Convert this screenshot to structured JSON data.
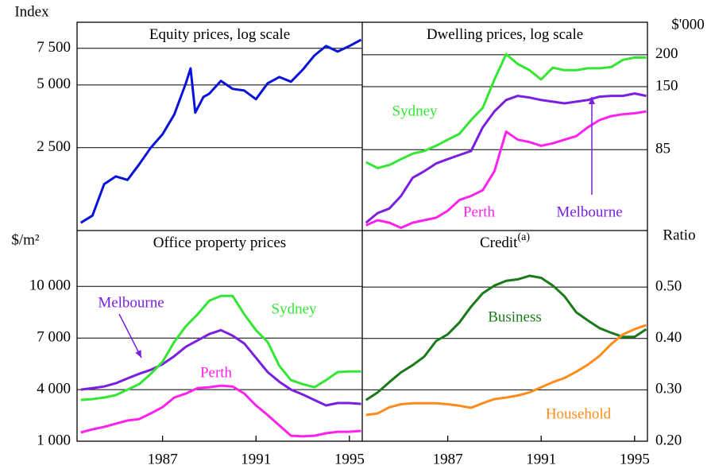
{
  "chart_data": [
    {
      "type": "line",
      "title": "Equity prices, log scale",
      "y_label": "Index",
      "y_side": "left",
      "log_scale": true,
      "grid": true,
      "xlim": [
        1983.34,
        1995.55
      ],
      "ylim": [
        1000,
        10000
      ],
      "yticks": [
        {
          "value": 2500,
          "label": "2 500"
        },
        {
          "value": 5000,
          "label": "5 000"
        },
        {
          "value": 7500,
          "label": "7 500"
        }
      ],
      "x": [
        1983.5,
        1984,
        1984.5,
        1985,
        1985.5,
        1986,
        1986.5,
        1987,
        1987.5,
        1988,
        1988.2,
        1988.4,
        1988.75,
        1989,
        1989.5,
        1990,
        1990.5,
        1991,
        1991.5,
        1992,
        1992.5,
        1993,
        1993.5,
        1994,
        1994.5,
        1995,
        1995.5
      ],
      "series": [
        {
          "color": "#0a14d8",
          "values": [
            1090,
            1180,
            1670,
            1820,
            1750,
            2080,
            2500,
            2900,
            3600,
            5100,
            6000,
            3680,
            4380,
            4540,
            5230,
            4790,
            4700,
            4270,
            5090,
            5460,
            5180,
            5910,
            6920,
            7690,
            7230,
            7690,
            8240
          ]
        }
      ]
    },
    {
      "type": "line",
      "title": "Dwelling prices, log scale",
      "y_label": "$'000",
      "y_side": "right",
      "log_scale": true,
      "grid": true,
      "xlim": [
        1983.34,
        1995.55
      ],
      "ylim": [
        41,
        268
      ],
      "yticks": [
        85,
        150,
        200
      ],
      "x": [
        1983.5,
        1984,
        1984.5,
        1985,
        1985.5,
        1986,
        1986.5,
        1987,
        1987.5,
        1988,
        1988.5,
        1989,
        1989.5,
        1990,
        1990.5,
        1991,
        1991.5,
        1992,
        1992.5,
        1993,
        1993.5,
        1994,
        1994.5,
        1995,
        1995.5
      ],
      "series": [
        {
          "name": "Sydney",
          "color": "#33e633",
          "values": [
            76,
            72,
            74,
            78,
            82,
            84,
            88,
            93,
            98,
            111,
            124,
            160,
            201,
            184,
            174,
            160,
            178,
            174,
            174,
            177,
            177,
            179,
            191,
            195,
            195
          ]
        },
        {
          "name": "Perth",
          "color": "#ff22ee",
          "values": [
            43,
            45,
            44,
            42,
            44,
            45,
            46,
            49,
            54,
            56,
            59,
            70,
            100,
            93,
            91,
            88,
            90,
            93,
            96,
            104,
            111,
            115,
            117,
            118,
            120
          ]
        },
        {
          "name": "Melbourne",
          "color": "#7a1fe0",
          "values": [
            44,
            48,
            50,
            56,
            66,
            70,
            75,
            78,
            81,
            84,
            104,
            120,
            133,
            138,
            136,
            133,
            131,
            129,
            131,
            133,
            137,
            138,
            138,
            141,
            138
          ]
        }
      ]
    },
    {
      "type": "line",
      "title": "Office property prices",
      "y_label": "$/m²",
      "y_side": "left",
      "log_scale": false,
      "grid": true,
      "xlim": [
        1983.34,
        1995.55
      ],
      "ylim": [
        1000,
        13250
      ],
      "yticks": [
        {
          "value": 1000,
          "label": "1 000"
        },
        {
          "value": 4000,
          "label": "4 000"
        },
        {
          "value": 7000,
          "label": "7 000"
        },
        {
          "value": 10000,
          "label": "10 000"
        }
      ],
      "xticks": [
        1987,
        1991,
        1995
      ],
      "x": [
        1983.5,
        1984,
        1984.5,
        1985,
        1985.5,
        1986,
        1986.5,
        1987,
        1987.5,
        1988,
        1988.5,
        1989,
        1989.5,
        1990,
        1990.5,
        1991,
        1991.5,
        1992,
        1992.5,
        1993,
        1993.5,
        1994,
        1994.5,
        1995,
        1995.5
      ],
      "series": [
        {
          "name": "Melbourne",
          "color": "#7a1fe0",
          "values": [
            4000,
            4090,
            4180,
            4370,
            4650,
            4920,
            5150,
            5480,
            5940,
            6490,
            6860,
            7230,
            7460,
            7140,
            6680,
            5850,
            5020,
            4460,
            4000,
            3720,
            3400,
            3080,
            3220,
            3220,
            3170
          ]
        },
        {
          "name": "Sydney",
          "color": "#33e633",
          "values": [
            3400,
            3450,
            3540,
            3680,
            4000,
            4320,
            4920,
            5620,
            6770,
            7690,
            8380,
            9170,
            9450,
            9450,
            8380,
            7460,
            6770,
            5380,
            4550,
            4320,
            4140,
            4550,
            5020,
            5060,
            5060
          ]
        },
        {
          "name": "Perth",
          "color": "#ff22ee",
          "values": [
            1510,
            1690,
            1830,
            2020,
            2200,
            2290,
            2620,
            2980,
            3540,
            3770,
            4090,
            4140,
            4230,
            4180,
            3770,
            3080,
            2520,
            1920,
            1320,
            1280,
            1320,
            1460,
            1550,
            1550,
            1600
          ]
        }
      ]
    },
    {
      "type": "line",
      "title": "Credit",
      "title_sup": "(a)",
      "y_label": "Ratio",
      "y_side": "right",
      "log_scale": false,
      "grid": true,
      "xlim": [
        1983.34,
        1995.55
      ],
      "ylim": [
        0.2,
        0.61
      ],
      "yticks": [
        {
          "value": 0.2,
          "label": "0.20"
        },
        {
          "value": 0.3,
          "label": "0.30"
        },
        {
          "value": 0.4,
          "label": "0.40"
        },
        {
          "value": 0.5,
          "label": "0.50"
        }
      ],
      "xticks": [
        1987,
        1991,
        1995
      ],
      "x": [
        1983.5,
        1984,
        1984.5,
        1985,
        1985.5,
        1986,
        1986.5,
        1987,
        1987.5,
        1988,
        1988.5,
        1989,
        1989.5,
        1990,
        1990.5,
        1991,
        1991.5,
        1992,
        1992.5,
        1993,
        1993.5,
        1994,
        1994.5,
        1995,
        1995.5
      ],
      "series": [
        {
          "name": "Business",
          "color": "#1a7a1a",
          "values": [
            0.28,
            0.295,
            0.315,
            0.334,
            0.348,
            0.365,
            0.395,
            0.408,
            0.431,
            0.462,
            0.488,
            0.503,
            0.512,
            0.515,
            0.522,
            0.518,
            0.503,
            0.482,
            0.451,
            0.435,
            0.42,
            0.411,
            0.403,
            0.403,
            0.418
          ]
        },
        {
          "name": "Household",
          "color": "#ff8c1a",
          "values": [
            0.251,
            0.254,
            0.266,
            0.272,
            0.274,
            0.274,
            0.274,
            0.272,
            0.269,
            0.265,
            0.274,
            0.282,
            0.285,
            0.289,
            0.295,
            0.305,
            0.315,
            0.323,
            0.335,
            0.349,
            0.366,
            0.389,
            0.408,
            0.418,
            0.426
          ]
        }
      ]
    }
  ]
}
